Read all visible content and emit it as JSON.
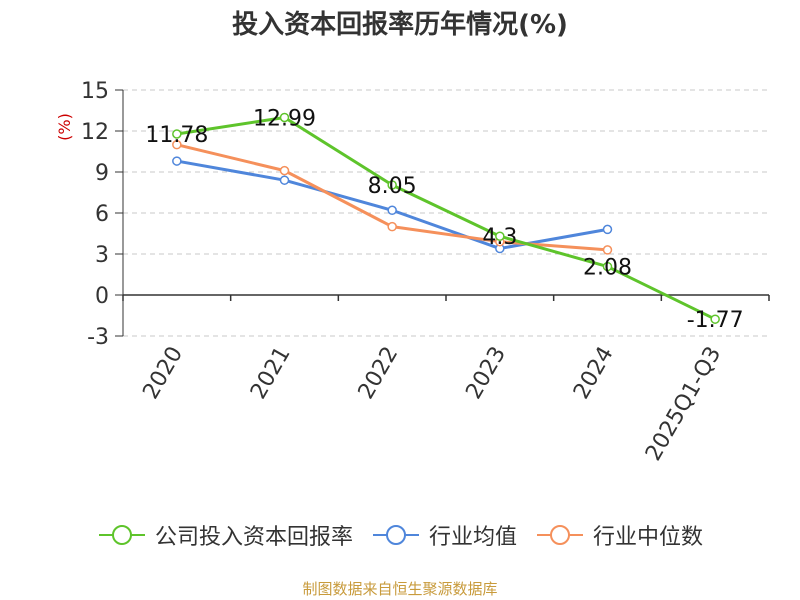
{
  "title": "投入资本回报率历年情况(%)",
  "source": "制图数据来自恒生聚源数据库",
  "chart_data": {
    "type": "line",
    "title": "投入资本回报率历年情况(%)",
    "ylabel": "(%)",
    "xlabel": "",
    "ylim": [
      -3,
      15
    ],
    "yticks": [
      -3,
      0,
      3,
      6,
      9,
      12,
      15
    ],
    "ytick_labels": [
      "-3",
      "0",
      "3",
      "6",
      "9",
      "12",
      "15"
    ],
    "grid": true,
    "legend_position": "bottom",
    "categories": [
      "2020",
      "2021",
      "2022",
      "2023",
      "2024",
      "2025Q1-Q3"
    ],
    "series": [
      {
        "name": "公司投入资本回报率",
        "color": "#5ec42b",
        "values": [
          11.78,
          12.99,
          8.05,
          4.3,
          2.08,
          -1.77
        ],
        "labels": [
          "11.78",
          "12.99",
          "8.05",
          "4.3",
          "2.08",
          "-1.77"
        ]
      },
      {
        "name": "行业均值",
        "color": "#4f86db",
        "values": [
          9.8,
          8.4,
          6.2,
          3.4,
          4.8,
          null
        ]
      },
      {
        "name": "行业中位数",
        "color": "#f5905b",
        "values": [
          11.0,
          9.1,
          5.0,
          3.9,
          3.3,
          null
        ]
      }
    ]
  }
}
